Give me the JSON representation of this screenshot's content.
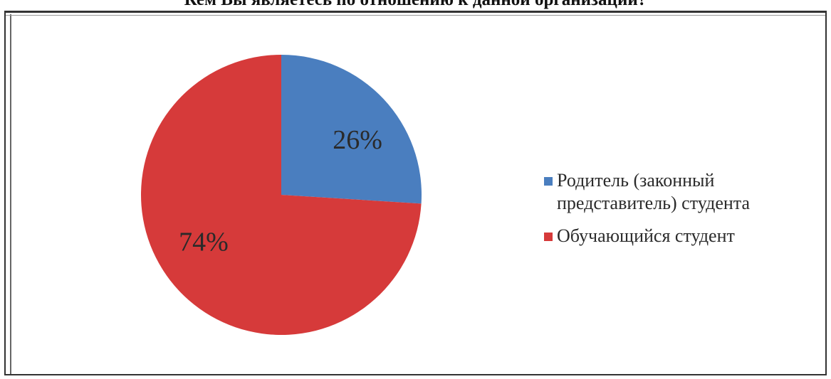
{
  "title": "Кем Вы являетесь по отношению к данной организации?",
  "chart_data": {
    "type": "pie",
    "slices": [
      {
        "label": "Родитель (законный представитель) студента",
        "value": 26,
        "data_label": "26%",
        "color": "#4a7ebf"
      },
      {
        "label": "Обучающийся студент",
        "value": 74,
        "data_label": "74%",
        "color": "#d63a3a"
      }
    ],
    "legend_position": "right",
    "legend": [
      {
        "label": "Родитель (законный\nпредставитель) студента",
        "color": "#4a7ebf"
      },
      {
        "label": "Обучающийся студент",
        "color": "#d63a3a"
      }
    ]
  }
}
